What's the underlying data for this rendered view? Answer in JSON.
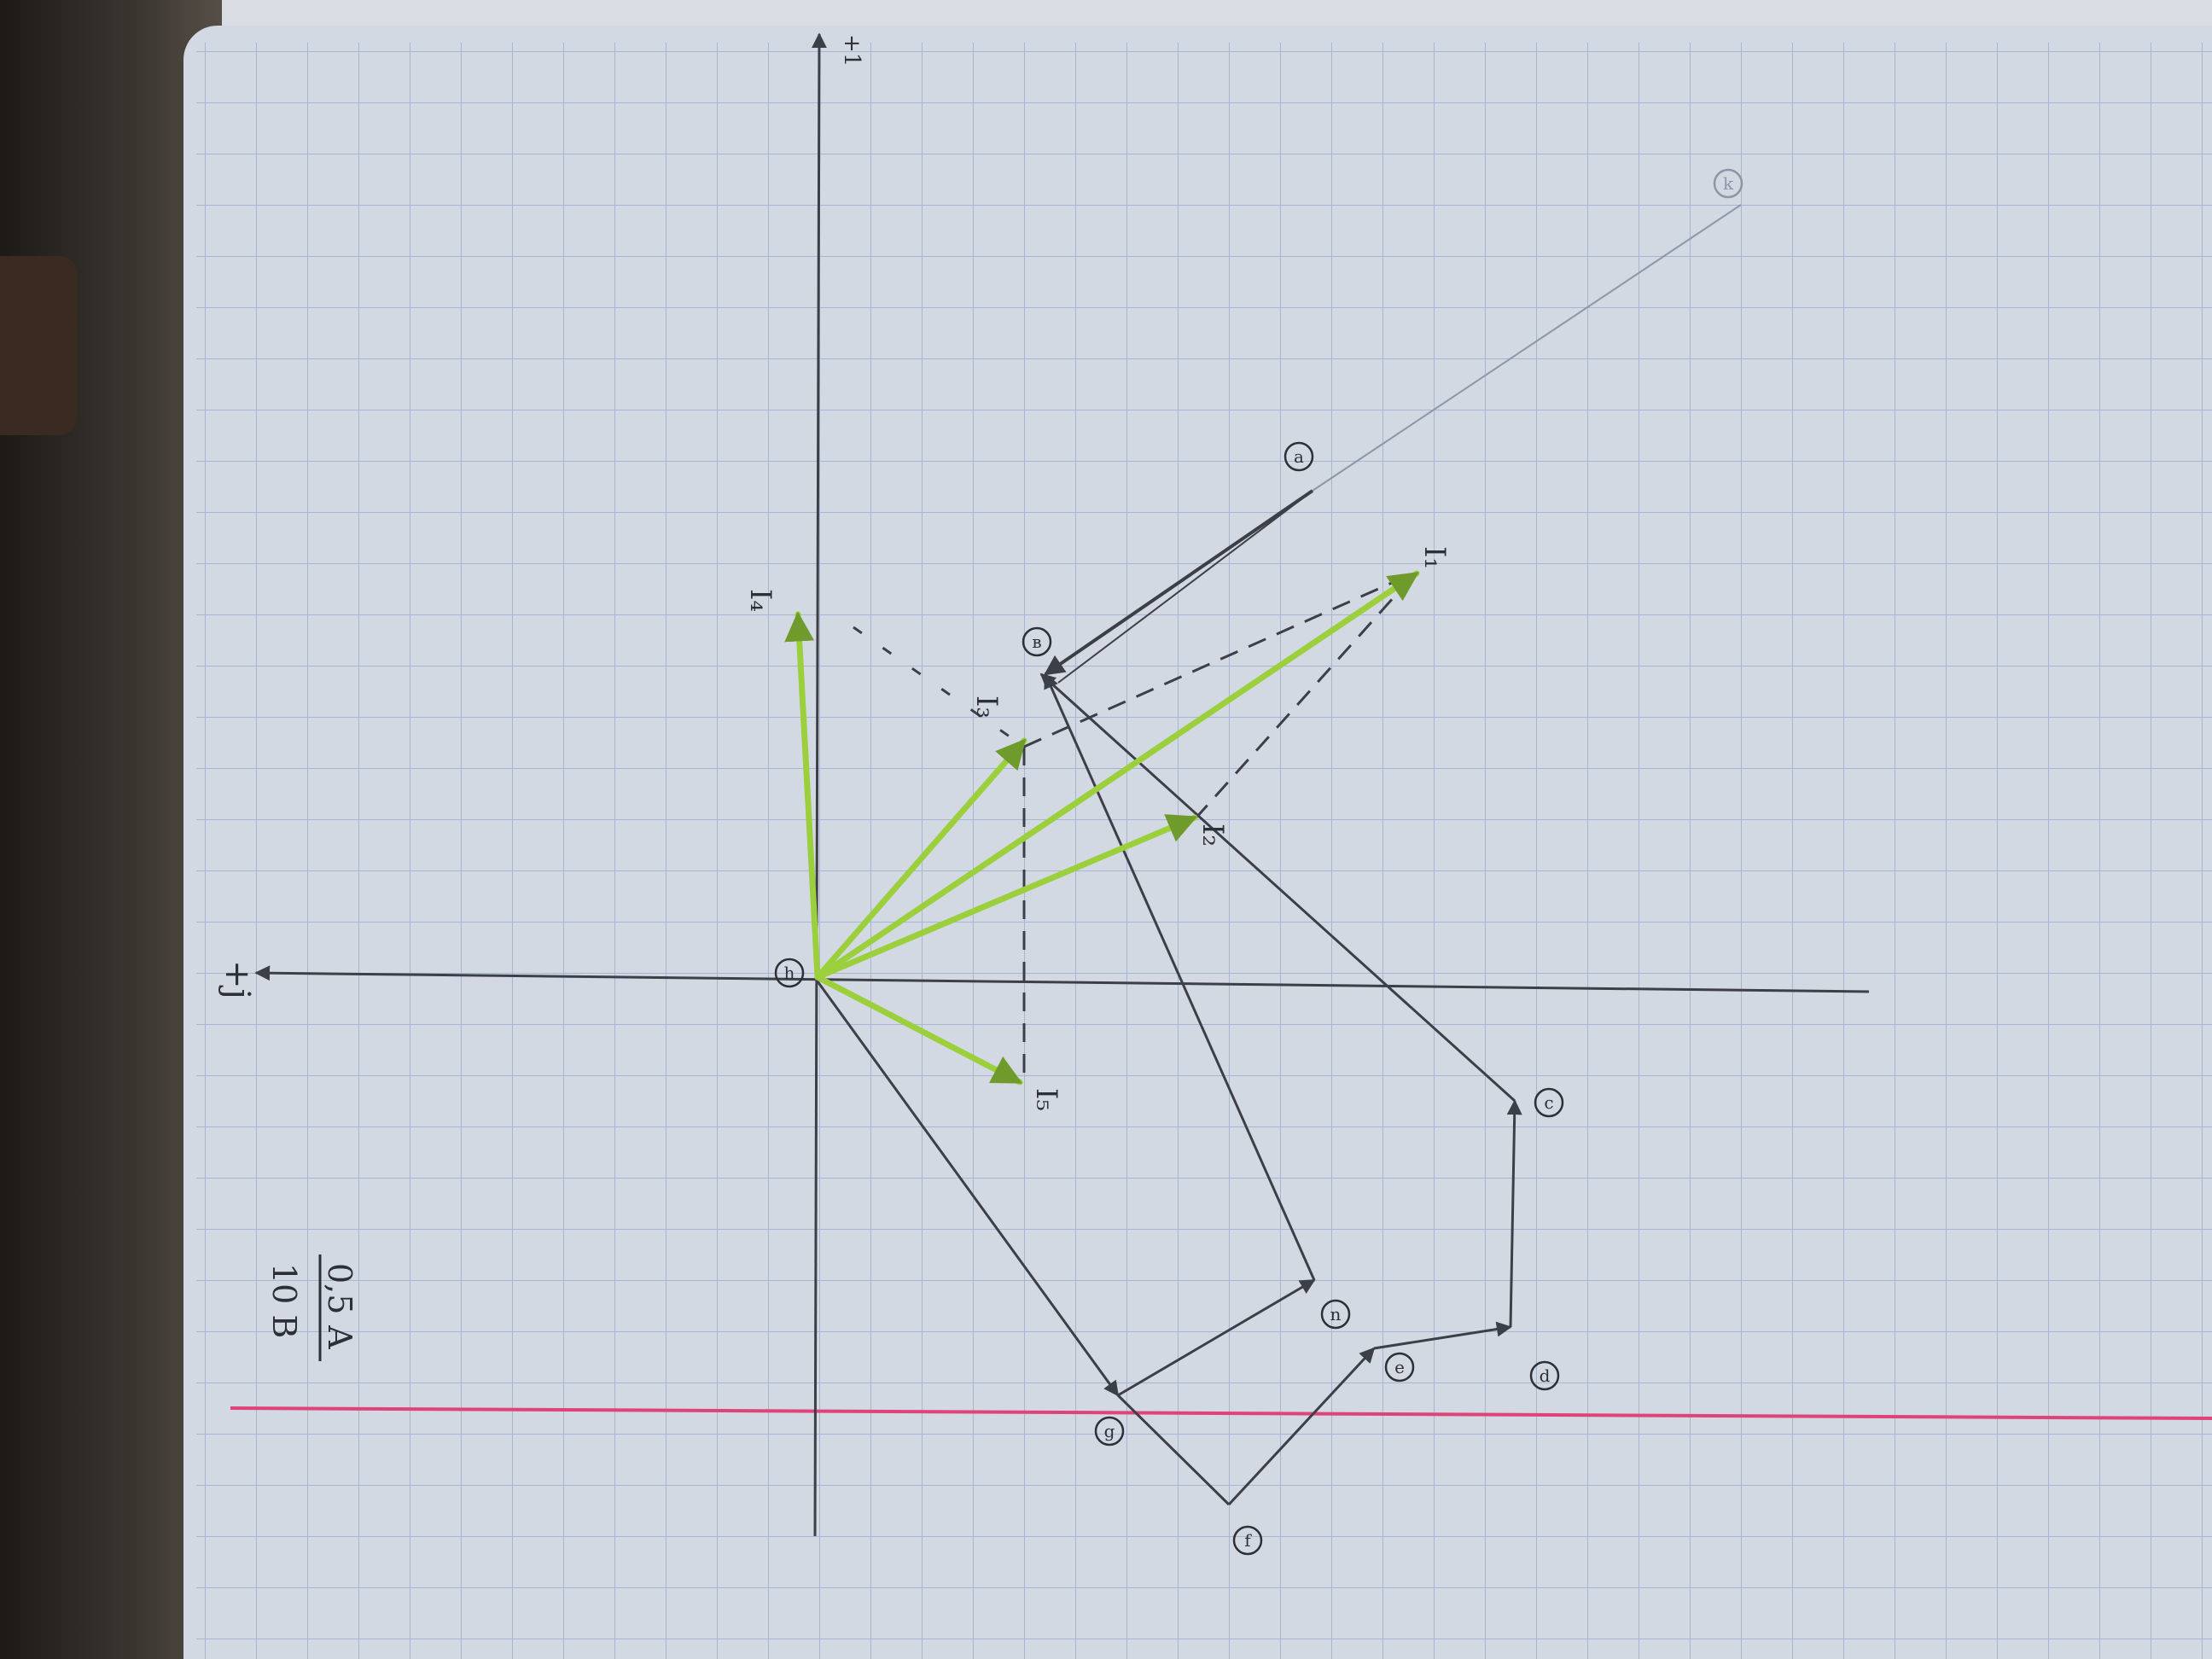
{
  "scale_note": {
    "voltage_scale": "10 В",
    "current_scale": "0,5 А"
  },
  "axes": {
    "real_axis_label": "+1",
    "imag_axis_label": "+j"
  },
  "current_vectors": [
    {
      "label": "I₁",
      "color": "#9bcf3c"
    },
    {
      "label": "I₂",
      "color": "#9bcf3c"
    },
    {
      "label": "I₃",
      "color": "#9bcf3c"
    },
    {
      "label": "I₄",
      "color": "#9bcf3c"
    },
    {
      "label": "I₅",
      "color": "#9bcf3c"
    }
  ],
  "potential_points": {
    "origin": "h",
    "a": "a",
    "b": "в",
    "c": "c",
    "d": "d",
    "e": "e",
    "f": "f",
    "g": "g",
    "n": "n",
    "top_right": "k"
  },
  "colors": {
    "paper": "#d3d9e3",
    "grid": "#9fb0cc",
    "pencil": "#4a4c55",
    "highlighter": "#9bcf3c",
    "margin_line": "#e0427a"
  }
}
